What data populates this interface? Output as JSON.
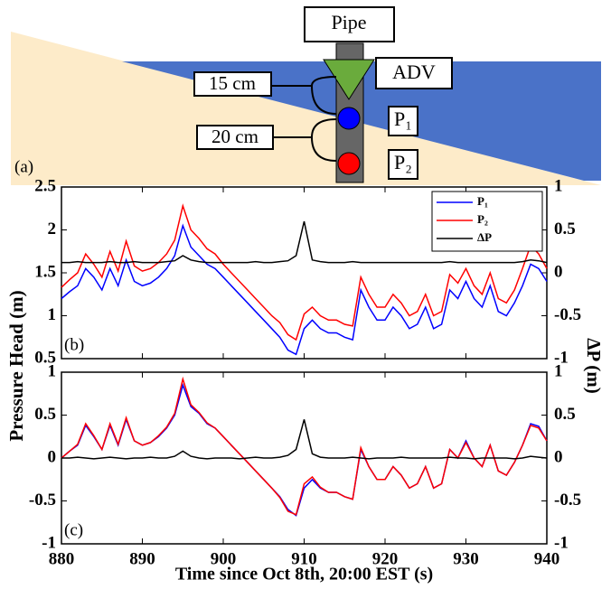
{
  "diagram": {
    "panel_label": "(a)",
    "pipe": "Pipe",
    "adv": "ADV",
    "upper_gap": "15 cm",
    "lower_gap": "20 cm",
    "sensor_1": "P₁",
    "sensor_2": "P₂"
  },
  "chart_data": [
    {
      "type": "line",
      "panel_label": "(b)",
      "ylabel": "Pressure Head (m)",
      "y2label": "ΔP (m)",
      "x": [
        880,
        881,
        882,
        883,
        884,
        885,
        886,
        887,
        888,
        889,
        890,
        891,
        892,
        893,
        894,
        895,
        896,
        897,
        898,
        899,
        900,
        901,
        902,
        903,
        904,
        905,
        906,
        907,
        908,
        909,
        910,
        911,
        912,
        913,
        914,
        915,
        916,
        917,
        918,
        919,
        920,
        921,
        922,
        923,
        924,
        925,
        926,
        927,
        928,
        929,
        930,
        931,
        932,
        933,
        934,
        935,
        936,
        937,
        938,
        939,
        940
      ],
      "xlim": [
        880,
        940
      ],
      "xticks": [
        880,
        890,
        900,
        910,
        920,
        930,
        940
      ],
      "ylim": [
        0.5,
        2.5
      ],
      "yticks": [
        0.5,
        1,
        1.5,
        2,
        2.5
      ],
      "y2lim": [
        -1,
        1
      ],
      "y2ticks": [
        -1,
        -0.5,
        0,
        0.5,
        1
      ],
      "legend": "upper right",
      "series": [
        {
          "name": "P₁",
          "color": "#0000ff",
          "values": [
            1.2,
            1.28,
            1.35,
            1.55,
            1.45,
            1.3,
            1.55,
            1.35,
            1.65,
            1.4,
            1.35,
            1.38,
            1.45,
            1.55,
            1.7,
            2.05,
            1.8,
            1.7,
            1.6,
            1.55,
            1.45,
            1.35,
            1.25,
            1.15,
            1.05,
            0.95,
            0.85,
            0.75,
            0.6,
            0.55,
            0.85,
            0.95,
            0.85,
            0.8,
            0.8,
            0.75,
            0.72,
            1.3,
            1.1,
            0.95,
            0.95,
            1.1,
            1.0,
            0.85,
            0.9,
            1.1,
            0.85,
            0.9,
            1.3,
            1.2,
            1.4,
            1.2,
            1.1,
            1.35,
            1.05,
            1.0,
            1.15,
            1.35,
            1.6,
            1.55,
            1.4
          ]
        },
        {
          "name": "P₂",
          "color": "#ff0000",
          "values": [
            1.33,
            1.42,
            1.5,
            1.72,
            1.6,
            1.45,
            1.75,
            1.52,
            1.87,
            1.58,
            1.52,
            1.55,
            1.62,
            1.72,
            1.88,
            2.28,
            2.0,
            1.9,
            1.78,
            1.72,
            1.6,
            1.5,
            1.4,
            1.3,
            1.2,
            1.1,
            1.0,
            0.92,
            0.78,
            0.72,
            1.02,
            1.1,
            1.0,
            0.95,
            0.95,
            0.9,
            0.88,
            1.45,
            1.25,
            1.1,
            1.1,
            1.25,
            1.15,
            1.0,
            1.05,
            1.25,
            1.0,
            1.05,
            1.48,
            1.38,
            1.55,
            1.35,
            1.25,
            1.5,
            1.2,
            1.15,
            1.3,
            1.55,
            1.82,
            1.72,
            1.55
          ]
        },
        {
          "name": "ΔP",
          "color": "#000000",
          "axis": "y2",
          "values": [
            0.12,
            0.12,
            0.13,
            0.12,
            0.12,
            0.12,
            0.13,
            0.12,
            0.12,
            0.13,
            0.12,
            0.12,
            0.12,
            0.13,
            0.14,
            0.2,
            0.15,
            0.13,
            0.12,
            0.12,
            0.12,
            0.12,
            0.12,
            0.12,
            0.13,
            0.12,
            0.12,
            0.13,
            0.14,
            0.2,
            0.6,
            0.15,
            0.13,
            0.12,
            0.12,
            0.12,
            0.13,
            0.12,
            0.12,
            0.12,
            0.12,
            0.12,
            0.12,
            0.12,
            0.12,
            0.12,
            0.12,
            0.12,
            0.13,
            0.12,
            0.12,
            0.12,
            0.12,
            0.12,
            0.12,
            0.12,
            0.12,
            0.13,
            0.15,
            0.14,
            0.12
          ]
        }
      ]
    },
    {
      "type": "line",
      "panel_label": "(c)",
      "xlabel": "Time since Oct 8th, 20:00 EST (s)",
      "x": [
        880,
        881,
        882,
        883,
        884,
        885,
        886,
        887,
        888,
        889,
        890,
        891,
        892,
        893,
        894,
        895,
        896,
        897,
        898,
        899,
        900,
        901,
        902,
        903,
        904,
        905,
        906,
        907,
        908,
        909,
        910,
        911,
        912,
        913,
        914,
        915,
        916,
        917,
        918,
        919,
        920,
        921,
        922,
        923,
        924,
        925,
        926,
        927,
        928,
        929,
        930,
        931,
        932,
        933,
        934,
        935,
        936,
        937,
        938,
        939,
        940
      ],
      "xlim": [
        880,
        940
      ],
      "xticks": [
        880,
        890,
        900,
        910,
        920,
        930,
        940
      ],
      "ylim": [
        -1,
        1
      ],
      "yticks": [
        -1,
        -0.5,
        0,
        0.5,
        1
      ],
      "y2lim": [
        -1,
        1
      ],
      "y2ticks": [
        -1,
        -0.5,
        0,
        0.5,
        1
      ],
      "series": [
        {
          "name": "P₁",
          "color": "#0000ff",
          "values": [
            0,
            0.08,
            0.15,
            0.38,
            0.25,
            0.1,
            0.38,
            0.15,
            0.45,
            0.2,
            0.15,
            0.18,
            0.25,
            0.35,
            0.5,
            0.85,
            0.6,
            0.52,
            0.4,
            0.35,
            0.25,
            0.15,
            0.05,
            -0.05,
            -0.15,
            -0.25,
            -0.35,
            -0.45,
            -0.6,
            -0.67,
            -0.35,
            -0.25,
            -0.35,
            -0.4,
            -0.4,
            -0.45,
            -0.48,
            0.1,
            -0.1,
            -0.25,
            -0.25,
            -0.1,
            -0.2,
            -0.35,
            -0.3,
            -0.1,
            -0.35,
            -0.3,
            0.1,
            0,
            0.2,
            0,
            -0.1,
            0.15,
            -0.15,
            -0.2,
            -0.05,
            0.15,
            0.4,
            0.37,
            0.2
          ]
        },
        {
          "name": "P₂",
          "color": "#ff0000",
          "values": [
            0,
            0.08,
            0.16,
            0.4,
            0.26,
            0.1,
            0.4,
            0.16,
            0.47,
            0.2,
            0.15,
            0.18,
            0.26,
            0.36,
            0.52,
            0.92,
            0.62,
            0.53,
            0.41,
            0.35,
            0.25,
            0.15,
            0.05,
            -0.05,
            -0.15,
            -0.25,
            -0.35,
            -0.46,
            -0.62,
            -0.66,
            -0.3,
            -0.22,
            -0.34,
            -0.4,
            -0.4,
            -0.45,
            -0.48,
            0.12,
            -0.1,
            -0.25,
            -0.25,
            -0.1,
            -0.2,
            -0.35,
            -0.3,
            -0.1,
            -0.35,
            -0.3,
            0.1,
            0,
            0.18,
            0,
            -0.1,
            0.15,
            -0.15,
            -0.2,
            -0.05,
            0.15,
            0.38,
            0.35,
            0.2
          ]
        },
        {
          "name": "ΔP",
          "color": "#000000",
          "axis": "y2",
          "values": [
            0,
            0,
            0.01,
            0,
            -0.01,
            0,
            0.01,
            0,
            -0.01,
            0,
            0,
            0.01,
            0,
            0,
            0.02,
            0.08,
            0.02,
            0,
            -0.01,
            0,
            0,
            0,
            -0.01,
            0,
            0.01,
            0,
            0,
            0.01,
            0.03,
            0.1,
            0.45,
            0.05,
            0.01,
            0,
            0,
            0,
            0.01,
            0,
            -0.01,
            0,
            0,
            0,
            0.01,
            0,
            0,
            0,
            0,
            0,
            0.01,
            0,
            0,
            -0.01,
            0,
            0,
            0,
            0,
            -0.01,
            0,
            0.02,
            0.01,
            0
          ]
        }
      ]
    }
  ]
}
